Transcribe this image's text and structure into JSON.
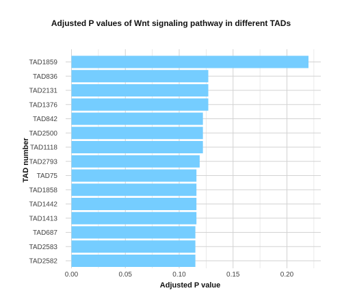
{
  "chart_data": {
    "type": "bar",
    "orientation": "horizontal",
    "title": "Adjusted P values of Wnt signaling pathway in different TADs",
    "xlabel": "Adjusted P value",
    "ylabel": "TAD number",
    "xlim": [
      0,
      0.225
    ],
    "xticks": [
      "0.00",
      "0.05",
      "0.10",
      "0.15",
      "0.20"
    ],
    "grid": true,
    "bar_color": "#75CDFF",
    "categories": [
      "TAD1859",
      "TAD836",
      "TAD2131",
      "TAD1376",
      "TAD842",
      "TAD2500",
      "TAD1118",
      "TAD2793",
      "TAD75",
      "TAD1858",
      "TAD1442",
      "TAD1413",
      "TAD687",
      "TAD2583",
      "TAD2582"
    ],
    "values": [
      0.22,
      0.127,
      0.127,
      0.127,
      0.122,
      0.122,
      0.122,
      0.119,
      0.116,
      0.116,
      0.116,
      0.116,
      0.115,
      0.115,
      0.115
    ]
  }
}
